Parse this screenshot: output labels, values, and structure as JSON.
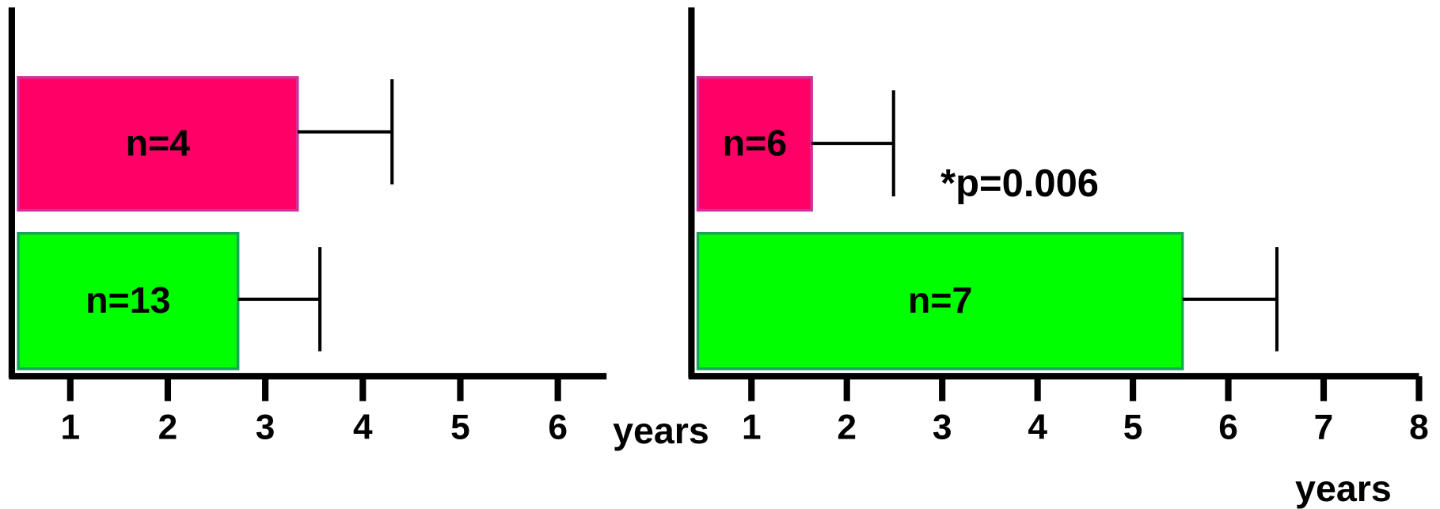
{
  "chart_data": [
    {
      "type": "bar",
      "orientation": "horizontal",
      "x_label": "years",
      "xlim": [
        0.4,
        6.5
      ],
      "xticks": [
        1,
        2,
        3,
        4,
        5,
        6
      ],
      "bars": [
        {
          "label": "n=4",
          "color": "#ff0066",
          "value": 3.33,
          "error": 0.97
        },
        {
          "label": "n=13",
          "color": "#00ff00",
          "value": 2.72,
          "error": 0.84
        }
      ]
    },
    {
      "type": "bar",
      "orientation": "horizontal",
      "x_label": "years",
      "annotation": "*p=0.006",
      "xlim": [
        0.37,
        8
      ],
      "xticks": [
        1,
        2,
        3,
        4,
        5,
        6,
        7,
        8
      ],
      "bars": [
        {
          "label": "n=6",
          "color": "#ff0066",
          "value": 1.63,
          "error": 0.86
        },
        {
          "label": "n=7",
          "color": "#00ff00",
          "value": 5.52,
          "error": 0.99
        }
      ]
    }
  ]
}
